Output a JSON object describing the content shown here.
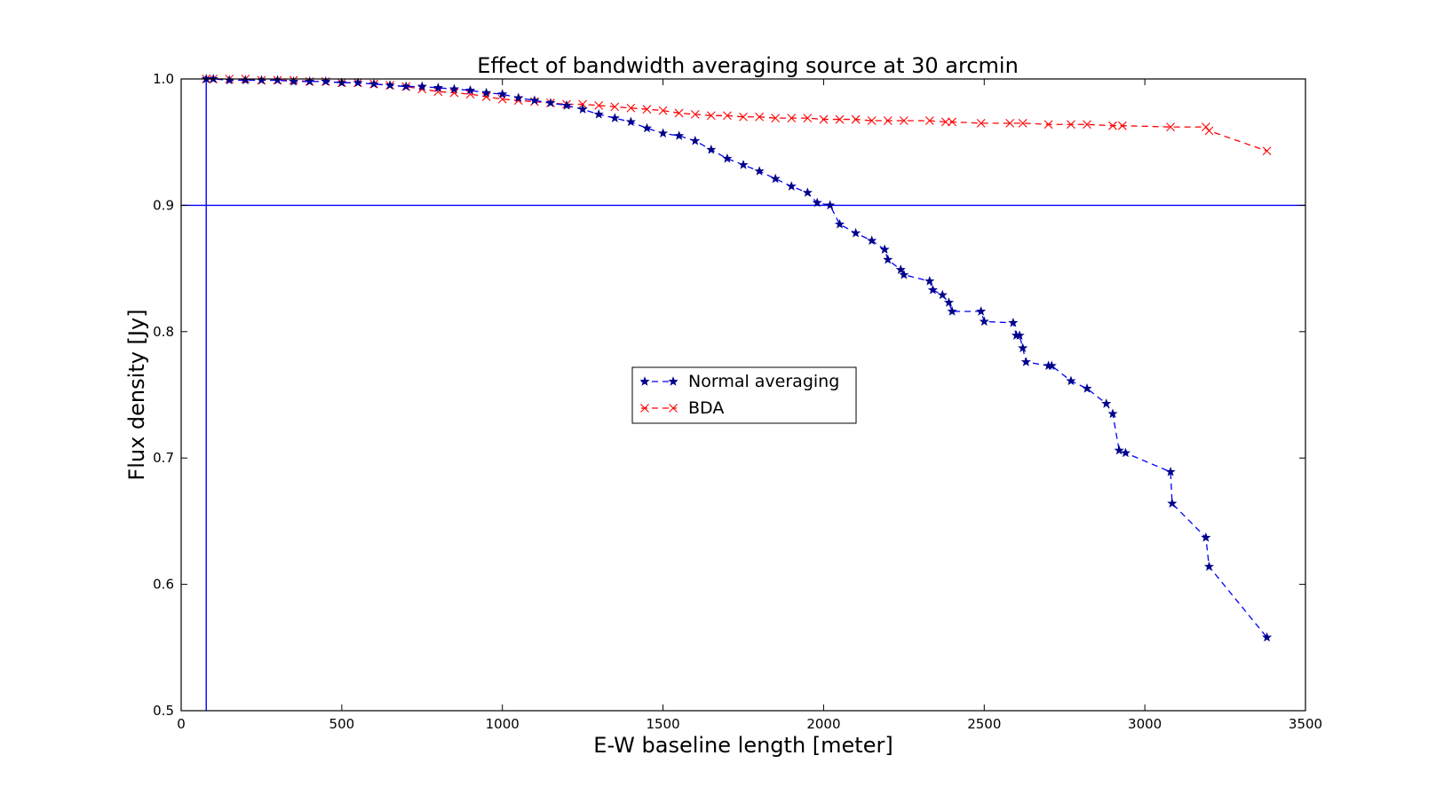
{
  "chart_data": {
    "type": "line",
    "title": "Effect of bandwidth averaging source at 30 arcmin",
    "xlabel": "E-W baseline length [meter]",
    "ylabel": "Flux density [Jy]",
    "xlim": [
      0,
      3500
    ],
    "ylim": [
      0.5,
      1.0
    ],
    "xticks": [
      0,
      500,
      1000,
      1500,
      2000,
      2500,
      3000,
      3500
    ],
    "xtick_labels": [
      "0",
      "500",
      "1000",
      "1500",
      "2000",
      "2500",
      "3000",
      "3500"
    ],
    "yticks": [
      0.5,
      0.6,
      0.7,
      0.8,
      0.9,
      1.0
    ],
    "ytick_labels": [
      "0.5",
      "0.6",
      "0.7",
      "0.8",
      "0.9",
      "1.0"
    ],
    "grid": false,
    "legend_position": "center",
    "reference_lines": {
      "horizontal_y": 0.9,
      "vertical_x": 78,
      "color": "#0000ff"
    },
    "series": [
      {
        "name": "Normal averaging",
        "marker": "star",
        "line_style": "dashed",
        "color": "#00008b",
        "line_color": "#0000ff",
        "x": [
          78,
          100,
          150,
          200,
          250,
          300,
          350,
          400,
          450,
          500,
          550,
          600,
          650,
          700,
          750,
          800,
          850,
          900,
          950,
          1000,
          1050,
          1100,
          1150,
          1200,
          1250,
          1300,
          1350,
          1400,
          1450,
          1500,
          1550,
          1600,
          1650,
          1700,
          1750,
          1800,
          1850,
          1900,
          1950,
          1980,
          2020,
          2050,
          2100,
          2150,
          2190,
          2200,
          2240,
          2250,
          2330,
          2340,
          2370,
          2390,
          2400,
          2490,
          2500,
          2590,
          2600,
          2610,
          2620,
          2630,
          2700,
          2710,
          2770,
          2820,
          2880,
          2900,
          2920,
          2940,
          3080,
          3085,
          3190,
          3200,
          3380
        ],
        "y": [
          1.0,
          1.0,
          0.999,
          0.999,
          0.999,
          0.999,
          0.998,
          0.998,
          0.998,
          0.997,
          0.997,
          0.996,
          0.995,
          0.994,
          0.994,
          0.993,
          0.992,
          0.991,
          0.989,
          0.988,
          0.985,
          0.983,
          0.981,
          0.979,
          0.976,
          0.972,
          0.969,
          0.966,
          0.961,
          0.957,
          0.955,
          0.951,
          0.944,
          0.937,
          0.932,
          0.927,
          0.921,
          0.915,
          0.91,
          0.902,
          0.9,
          0.885,
          0.878,
          0.872,
          0.865,
          0.857,
          0.849,
          0.845,
          0.84,
          0.833,
          0.829,
          0.823,
          0.816,
          0.816,
          0.808,
          0.807,
          0.797,
          0.797,
          0.787,
          0.776,
          0.773,
          0.773,
          0.761,
          0.755,
          0.743,
          0.735,
          0.706,
          0.704,
          0.689,
          0.664,
          0.637,
          0.614,
          0.558
        ]
      },
      {
        "name": "BDA",
        "marker": "x",
        "line_style": "dashed",
        "color": "#ff0000",
        "line_color": "#ff0000",
        "x": [
          78,
          100,
          150,
          200,
          250,
          300,
          350,
          400,
          450,
          500,
          550,
          600,
          650,
          700,
          750,
          800,
          850,
          900,
          950,
          1000,
          1050,
          1100,
          1150,
          1200,
          1250,
          1300,
          1350,
          1400,
          1450,
          1500,
          1550,
          1600,
          1650,
          1700,
          1750,
          1800,
          1850,
          1900,
          1950,
          2000,
          2050,
          2100,
          2150,
          2200,
          2250,
          2330,
          2380,
          2400,
          2490,
          2580,
          2620,
          2700,
          2770,
          2820,
          2900,
          2930,
          3080,
          3190,
          3200,
          3380
        ],
        "y": [
          1.0,
          1.0,
          1.0,
          1.0,
          0.999,
          0.999,
          0.999,
          0.998,
          0.998,
          0.997,
          0.997,
          0.996,
          0.995,
          0.994,
          0.992,
          0.99,
          0.989,
          0.988,
          0.986,
          0.984,
          0.983,
          0.982,
          0.981,
          0.98,
          0.98,
          0.979,
          0.978,
          0.977,
          0.976,
          0.975,
          0.973,
          0.972,
          0.971,
          0.971,
          0.97,
          0.97,
          0.969,
          0.969,
          0.969,
          0.968,
          0.968,
          0.968,
          0.967,
          0.967,
          0.967,
          0.967,
          0.966,
          0.966,
          0.965,
          0.965,
          0.965,
          0.964,
          0.964,
          0.964,
          0.963,
          0.963,
          0.962,
          0.962,
          0.959,
          0.943
        ]
      }
    ]
  }
}
